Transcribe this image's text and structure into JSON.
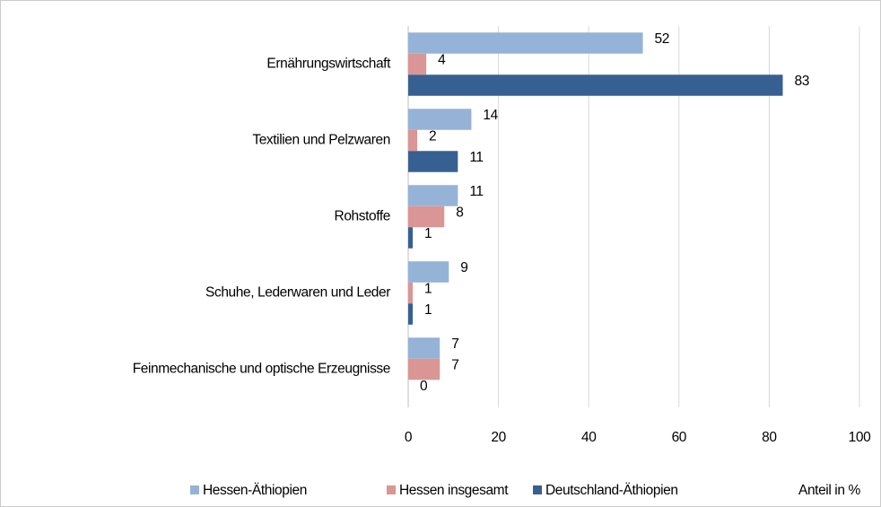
{
  "chart_data": {
    "type": "bar",
    "orientation": "horizontal",
    "categories": [
      "Ernährungswirtschaft",
      "Textilien und Pelzwaren",
      "Rohstoffe",
      "Schuhe, Lederwaren und Leder",
      "Feinmechanische und optische Erzeugnisse"
    ],
    "series": [
      {
        "name": "Hessen-Äthiopien",
        "color": "#95b3d7",
        "values": [
          52,
          14,
          11,
          9,
          7
        ]
      },
      {
        "name": "Hessen insgesamt",
        "color": "#d99694",
        "values": [
          4,
          2,
          8,
          1,
          7
        ]
      },
      {
        "name": "Deutschland-Äthiopien",
        "color": "#376092",
        "values": [
          83,
          11,
          1,
          1,
          0
        ]
      }
    ],
    "x_label": "Anteil in %",
    "xlim": [
      0,
      100
    ],
    "xticks": [
      0,
      20,
      40,
      60,
      80,
      100
    ],
    "grid": true,
    "legend": "bottom"
  }
}
